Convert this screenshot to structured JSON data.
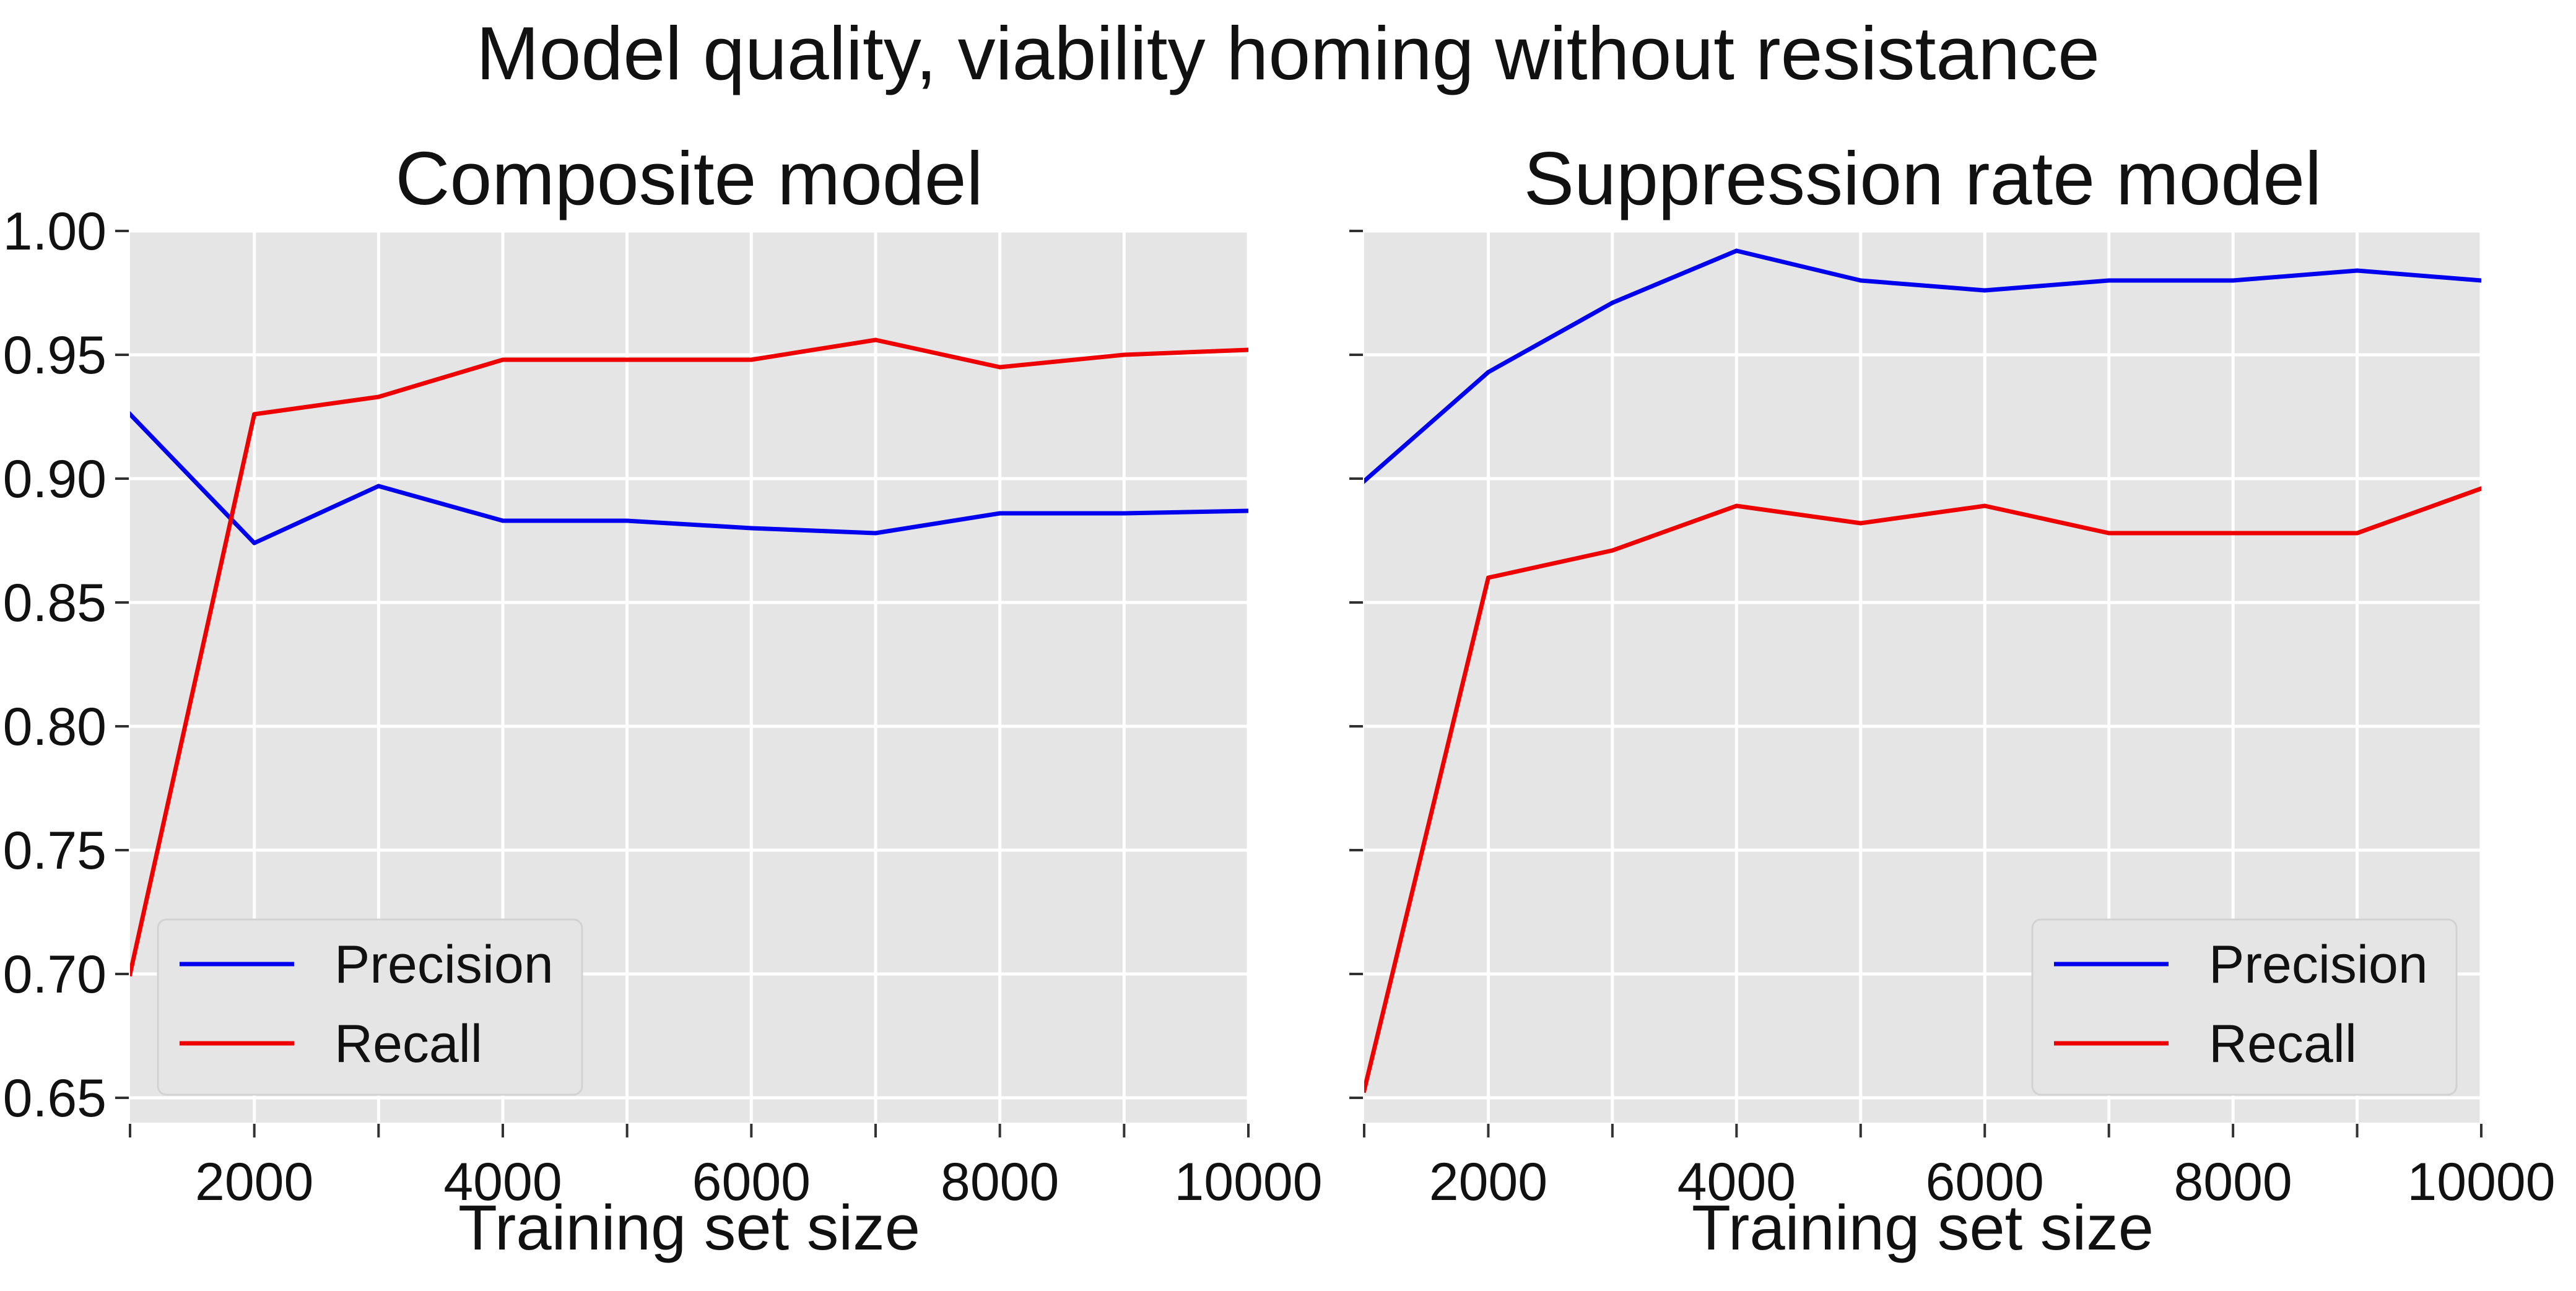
{
  "figure": {
    "suptitle": "Model quality, viability homing without resistance",
    "background_color": "#ffffff",
    "axes_facecolor": "#e5e5e5",
    "grid_color": "#ffffff",
    "sharey": true
  },
  "chart_data": [
    {
      "type": "line",
      "title": "Composite model",
      "xlabel": "Training set size",
      "ylabel": "",
      "xlim": [
        1000,
        10000
      ],
      "ylim": [
        0.64,
        1.0
      ],
      "xticks_major": [
        2000,
        4000,
        6000,
        8000,
        10000
      ],
      "xticks_minor": [
        1000,
        3000,
        5000,
        7000,
        9000
      ],
      "yticks": [
        0.65,
        0.7,
        0.75,
        0.8,
        0.85,
        0.9,
        0.95,
        1.0
      ],
      "ytick_labels": [
        "0.65",
        "0.70",
        "0.75",
        "0.80",
        "0.85",
        "0.90",
        "0.95",
        "1.00"
      ],
      "xtick_labels": [
        "2000",
        "4000",
        "6000",
        "8000",
        "10000"
      ],
      "grid": true,
      "legend_position": "lower-left",
      "x": [
        1000,
        2000,
        3000,
        4000,
        5000,
        6000,
        7000,
        8000,
        9000,
        10000
      ],
      "series": [
        {
          "name": "Precision",
          "color": "#0000ee",
          "values": [
            0.926,
            0.874,
            0.897,
            0.883,
            0.883,
            0.88,
            0.878,
            0.886,
            0.886,
            0.887
          ]
        },
        {
          "name": "Recall",
          "color": "#ee0000",
          "values": [
            0.7,
            0.926,
            0.933,
            0.948,
            0.948,
            0.948,
            0.956,
            0.945,
            0.95,
            0.952
          ]
        }
      ]
    },
    {
      "type": "line",
      "title": "Suppression rate model",
      "xlabel": "Training set size",
      "ylabel": "",
      "xlim": [
        1000,
        10000
      ],
      "ylim": [
        0.64,
        1.0
      ],
      "xticks_major": [
        2000,
        4000,
        6000,
        8000,
        10000
      ],
      "xticks_minor": [
        1000,
        3000,
        5000,
        7000,
        9000
      ],
      "yticks": [
        0.65,
        0.7,
        0.75,
        0.8,
        0.85,
        0.9,
        0.95,
        1.0
      ],
      "ytick_labels": [],
      "xtick_labels": [
        "2000",
        "4000",
        "6000",
        "8000",
        "10000"
      ],
      "grid": true,
      "legend_position": "lower-right",
      "x": [
        1000,
        2000,
        3000,
        4000,
        5000,
        6000,
        7000,
        8000,
        9000,
        10000
      ],
      "series": [
        {
          "name": "Precision",
          "color": "#0000ee",
          "values": [
            0.899,
            0.943,
            0.971,
            0.992,
            0.98,
            0.976,
            0.98,
            0.98,
            0.984,
            0.98
          ]
        },
        {
          "name": "Recall",
          "color": "#ee0000",
          "values": [
            0.653,
            0.86,
            0.871,
            0.889,
            0.882,
            0.889,
            0.878,
            0.878,
            0.878,
            0.896
          ]
        }
      ]
    }
  ]
}
